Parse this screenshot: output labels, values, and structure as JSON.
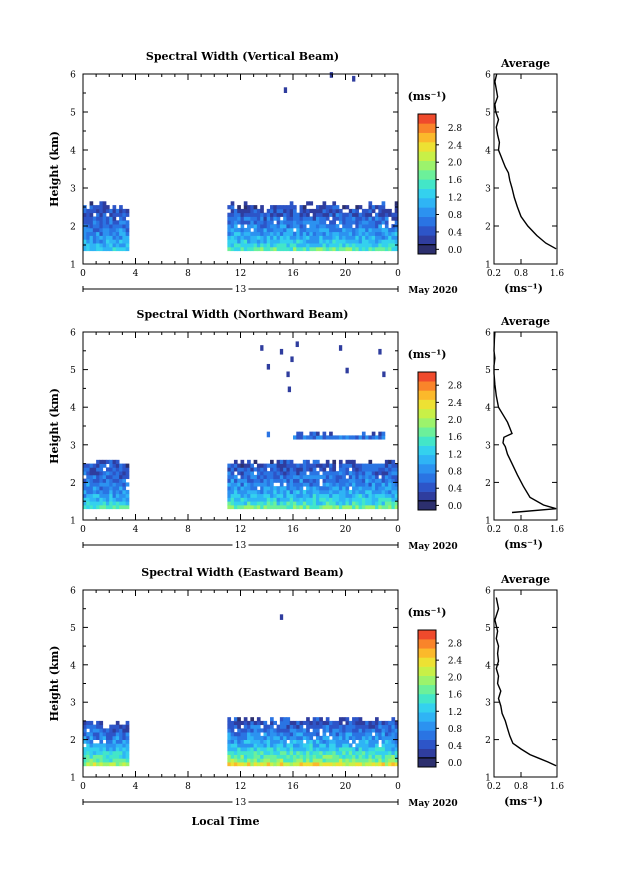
{
  "chart_data": [
    {
      "type": "heatmap",
      "title": "Spectral Width (Vertical Beam)",
      "xlabel": "",
      "ylabel": "Height (km)",
      "xlim": [
        0,
        24
      ],
      "ylim": [
        1,
        6
      ],
      "x_ticks": [
        "0",
        "4",
        "8",
        "12",
        "16",
        "20",
        "0"
      ],
      "y_ticks": [
        "1",
        "2",
        "3",
        "4",
        "5",
        "6"
      ],
      "date_day": "13",
      "date_label": "May 2020",
      "colorbar_unit": "(ms⁻¹)",
      "colorbar_ticks": [
        "0.0",
        "0.4",
        "0.8",
        "1.2",
        "1.6",
        "2.0",
        "2.4",
        "2.8"
      ],
      "colorbar_range": [
        0,
        3.0
      ],
      "data_blocks": [
        {
          "t_start": 0.0,
          "t_end": 3.5,
          "h_start": 1.35,
          "h_end": 2.5,
          "value_low_alt": 1.3,
          "value_high_alt": 0.4
        },
        {
          "t_start": 11.0,
          "t_end": 24.0,
          "h_start": 1.35,
          "h_end": 2.5,
          "value_low_alt": 1.6,
          "value_high_alt": 0.4
        }
      ],
      "isolated_cells": [
        {
          "t": 15.3,
          "h": 5.5,
          "v": 0.3
        },
        {
          "t": 18.8,
          "h": 5.9,
          "v": 0.3
        },
        {
          "t": 20.5,
          "h": 5.8,
          "v": 0.3
        }
      ],
      "profile": {
        "title": "Average",
        "xlabel": "(ms⁻¹)",
        "x_ticks": [
          "0.2",
          "0.8",
          "1.6"
        ],
        "xlim": [
          0.2,
          1.6
        ],
        "y_ticks": [
          "1",
          "2",
          "3",
          "4",
          "5",
          "6"
        ],
        "ylim": [
          1,
          6
        ],
        "x": [
          1.58,
          1.35,
          1.15,
          0.95,
          0.8,
          0.72,
          0.65,
          0.6,
          0.55,
          0.52,
          0.45,
          0.4,
          0.35,
          0.3,
          0.32,
          0.28,
          0.25,
          0.3,
          0.24,
          0.22,
          0.28,
          0.25,
          0.22,
          0.26
        ],
        "y": [
          1.4,
          1.55,
          1.75,
          2.0,
          2.25,
          2.5,
          2.75,
          3.0,
          3.2,
          3.4,
          3.55,
          3.7,
          3.85,
          4.0,
          4.2,
          4.4,
          4.6,
          4.8,
          5.0,
          5.2,
          5.4,
          5.6,
          5.8,
          6.0
        ]
      }
    },
    {
      "type": "heatmap",
      "title": "Spectral Width (Northward Beam)",
      "xlabel": "",
      "ylabel": "Height (km)",
      "xlim": [
        0,
        24
      ],
      "ylim": [
        1,
        6
      ],
      "x_ticks": [
        "0",
        "4",
        "8",
        "12",
        "16",
        "20",
        "0"
      ],
      "y_ticks": [
        "1",
        "2",
        "3",
        "4",
        "5",
        "6"
      ],
      "date_day": "13",
      "date_label": "May 2020",
      "colorbar_unit": "(ms⁻¹)",
      "colorbar_ticks": [
        "0.0",
        "0.4",
        "0.8",
        "1.2",
        "1.6",
        "2.0",
        "2.4",
        "2.8"
      ],
      "colorbar_range": [
        0,
        3.0
      ],
      "data_blocks": [
        {
          "t_start": 0.0,
          "t_end": 3.5,
          "h_start": 1.3,
          "h_end": 2.5,
          "value_low_alt": 1.5,
          "value_high_alt": 0.4
        },
        {
          "t_start": 11.0,
          "t_end": 24.0,
          "h_start": 1.3,
          "h_end": 2.5,
          "value_low_alt": 1.7,
          "value_high_alt": 0.4
        },
        {
          "t_start": 16.0,
          "t_end": 23.0,
          "h_start": 3.15,
          "h_end": 3.25,
          "value_low_alt": 0.7,
          "value_high_alt": 0.5
        }
      ],
      "isolated_cells": [
        {
          "t": 13.5,
          "h": 5.5,
          "v": 0.3
        },
        {
          "t": 14.0,
          "h": 5.0,
          "v": 0.3
        },
        {
          "t": 15.0,
          "h": 5.4,
          "v": 0.3
        },
        {
          "t": 15.5,
          "h": 4.8,
          "v": 0.3
        },
        {
          "t": 15.8,
          "h": 5.2,
          "v": 0.3
        },
        {
          "t": 16.2,
          "h": 5.6,
          "v": 0.3
        },
        {
          "t": 15.6,
          "h": 4.4,
          "v": 0.3
        },
        {
          "t": 19.5,
          "h": 5.5,
          "v": 0.3
        },
        {
          "t": 20.0,
          "h": 4.9,
          "v": 0.3
        },
        {
          "t": 22.5,
          "h": 5.4,
          "v": 0.3
        },
        {
          "t": 22.8,
          "h": 4.8,
          "v": 0.3
        },
        {
          "t": 14.0,
          "h": 3.2,
          "v": 0.7
        }
      ],
      "profile": {
        "title": "Average",
        "xlabel": "(ms⁻¹)",
        "x_ticks": [
          "0.2",
          "0.8",
          "1.6"
        ],
        "xlim": [
          0.2,
          1.6
        ],
        "y_ticks": [
          "1",
          "2",
          "3",
          "4",
          "5",
          "6"
        ],
        "ylim": [
          1,
          6
        ],
        "x": [
          0.6,
          1.58,
          1.3,
          1.0,
          0.85,
          0.72,
          0.6,
          0.5,
          0.45,
          0.4,
          0.42,
          0.6,
          0.55,
          0.5,
          0.4,
          0.3,
          0.25,
          0.22,
          0.2,
          0.2,
          0.22,
          0.2,
          0.21,
          0.22
        ],
        "y": [
          1.2,
          1.3,
          1.4,
          1.6,
          1.9,
          2.2,
          2.5,
          2.75,
          2.95,
          3.05,
          3.2,
          3.3,
          3.45,
          3.6,
          3.8,
          4.0,
          4.3,
          4.6,
          4.9,
          5.1,
          5.3,
          5.5,
          5.8,
          6.0
        ]
      }
    },
    {
      "type": "heatmap",
      "title": "Spectral Width (Eastward Beam)",
      "xlabel": "Local Time",
      "ylabel": "Height (km)",
      "xlim": [
        0,
        24
      ],
      "ylim": [
        1,
        6
      ],
      "x_ticks": [
        "0",
        "4",
        "8",
        "12",
        "16",
        "20",
        "0"
      ],
      "y_ticks": [
        "1",
        "2",
        "3",
        "4",
        "5",
        "6"
      ],
      "date_day": "13",
      "date_label": "May 2020",
      "colorbar_unit": "(ms⁻¹)",
      "colorbar_ticks": [
        "0.0",
        "0.4",
        "0.8",
        "1.2",
        "1.6",
        "2.0",
        "2.4",
        "2.8"
      ],
      "colorbar_range": [
        0,
        3.0
      ],
      "data_blocks": [
        {
          "t_start": 0.0,
          "t_end": 3.5,
          "h_start": 1.3,
          "h_end": 2.4,
          "value_low_alt": 2.0,
          "value_high_alt": 0.4
        },
        {
          "t_start": 11.0,
          "t_end": 24.0,
          "h_start": 1.3,
          "h_end": 2.5,
          "value_low_alt": 2.2,
          "value_high_alt": 0.4
        }
      ],
      "isolated_cells": [
        {
          "t": 15.0,
          "h": 5.2,
          "v": 0.3
        }
      ],
      "profile": {
        "title": "Average",
        "xlabel": "(ms⁻¹)",
        "x_ticks": [
          "0.2",
          "0.8",
          "1.6"
        ],
        "xlim": [
          0.2,
          1.6
        ],
        "y_ticks": [
          "1",
          "2",
          "3",
          "4",
          "5",
          "6"
        ],
        "ylim": [
          1,
          6
        ],
        "x": [
          1.58,
          1.4,
          1.2,
          1.0,
          0.8,
          0.62,
          0.55,
          0.5,
          0.45,
          0.38,
          0.35,
          0.3,
          0.35,
          0.28,
          0.3,
          0.25,
          0.3,
          0.28,
          0.3,
          0.25,
          0.28,
          0.22,
          0.3,
          0.25
        ],
        "y": [
          1.3,
          1.4,
          1.5,
          1.6,
          1.75,
          1.9,
          2.1,
          2.3,
          2.5,
          2.7,
          2.9,
          3.1,
          3.3,
          3.5,
          3.7,
          3.9,
          4.1,
          4.3,
          4.5,
          4.7,
          4.9,
          5.2,
          5.5,
          5.8
        ]
      }
    }
  ]
}
